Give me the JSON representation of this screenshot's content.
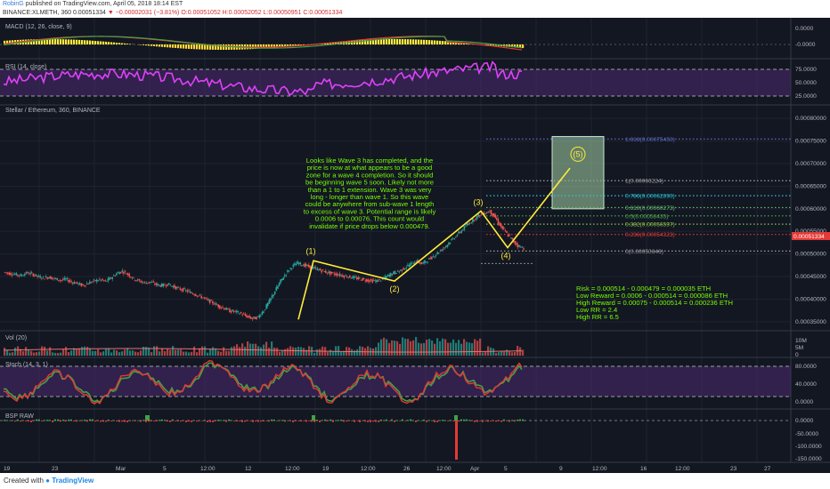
{
  "header": {
    "author": "RobinG",
    "published": "published on TradingView.com, April 05, 2018 18:14 EST",
    "symbol_line": "BINANCE:XLMETH, 360 0.00051334",
    "change": "▼ −0.00002031 (−3.81%)",
    "ohlc": "O:0.00051052 H:0.00052052 L:0.00050951 C:0.00051334"
  },
  "footer": {
    "created_with": "Created with",
    "brand": "TradingView"
  },
  "panes": {
    "macd": {
      "label": "MACD (12, 26, close, 9)",
      "ticks": [
        "0.0000",
        "-0.0000"
      ]
    },
    "rsi": {
      "label": "RSI (14, close)",
      "ticks": [
        "75.0000",
        "50.0000",
        "25.0000"
      ]
    },
    "price": {
      "label": "Stellar / Ethereum, 360, BINANCE",
      "ticks": [
        "0.00080000",
        "0.00075000",
        "0.00070000",
        "0.00065000",
        "0.00060000",
        "0.00055000",
        "0.00050000",
        "0.00045000",
        "0.00040000",
        "0.00035000"
      ]
    },
    "vol": {
      "label": "Vol (20)",
      "ticks": [
        "10M",
        "5M",
        "0"
      ]
    },
    "stoch": {
      "label": "Stoch (14, 3, 1)",
      "ticks": [
        "80.0000",
        "40.0000",
        "0.0000"
      ]
    },
    "bsp": {
      "label": "BSP RAW",
      "ticks": [
        "0.0000",
        "-50.0000",
        "-100.0000",
        "-150.0000"
      ]
    }
  },
  "x_ticks": [
    "19",
    "23",
    "Mar",
    "5",
    "12:00",
    "12",
    "12:00",
    "19",
    "12:00",
    "26",
    "12:00",
    "Apr",
    "5",
    "9",
    "12:00",
    "16",
    "12:00",
    "23",
    "27"
  ],
  "annotation": {
    "text_lines": [
      "Looks like Wave 3 has completed, and the",
      "price is now at what appears to be a good",
      "zone for a wave 4 completion. So it should",
      "be beginning wave 5 soon. Likely not more",
      "than a 1 to 1 extension. Wave 3 was very",
      "long - longer than wave 1. So this wave",
      "could be anywhere from sub-wave 1 length",
      "to excess of wave 3. Potential range is likely",
      "0.0006 to 0.00076. This count would",
      "invalidate if price drops below 0.000479."
    ],
    "rr_lines": [
      "Risk = 0.000514 - 0.000479 = 0.000035 ETH",
      "Low Reward = 0.0006 - 0.000514 = 0.000086 ETH",
      "High Reward = 0.00075 - 0.000514 = 0.000236 ETH",
      "Low RR = 2.4",
      "High RR = 6.5"
    ]
  },
  "chart_data": {
    "type": "line",
    "title": "Stellar / Ethereum, 360, BINANCE",
    "symbol": "BINANCE:XLMETH",
    "ylim": [
      0.00033,
      0.00083
    ],
    "wave_labels": [
      "(1)",
      "(2)",
      "(3)",
      "(4)",
      "(5)"
    ],
    "wave_points": [
      0.000355,
      0.000485,
      0.00044,
      0.000595,
      0.000514,
      0.00069
    ],
    "fib_levels": [
      {
        "label": "1.618(0.00075450)",
        "ratio": 1.618,
        "value": 0.0007545,
        "color": "#5c6bc0"
      },
      {
        "label": "1(0.00066224)",
        "ratio": 1,
        "value": 0.00066224,
        "color": "#9e9e9e"
      },
      {
        "label": "0.786(0.00062890)",
        "ratio": 0.786,
        "value": 0.0006289,
        "color": "#26c6da"
      },
      {
        "label": "0.618(0.00060273)",
        "ratio": 0.618,
        "value": 0.00060273,
        "color": "#66bb6a"
      },
      {
        "label": "0.5(0.00058435)",
        "ratio": 0.5,
        "value": 0.00058435,
        "color": "#4caf50"
      },
      {
        "label": "0.382(0.00056597)",
        "ratio": 0.382,
        "value": 0.00056597,
        "color": "#8bc34a"
      },
      {
        "label": "0.236(0.00054323)",
        "ratio": 0.236,
        "value": 0.00054323,
        "color": "#e53935"
      },
      {
        "label": "0(0.00050646)",
        "ratio": 0,
        "value": 0.00050646,
        "color": "#9e9e9e"
      }
    ],
    "target_zone": [
      0.0006,
      0.00076
    ],
    "invalidation": 0.000479,
    "last_close": 0.00051334,
    "price_path": [
      0.00046,
      0.000457,
      0.000455,
      0.000452,
      0.000458,
      0.000456,
      0.00045,
      0.000447,
      0.000449,
      0.000445,
      0.000442,
      0.000444,
      0.000438,
      0.000435,
      0.00043,
      0.000436,
      0.00044,
      0.000443,
      0.000439,
      0.000447,
      0.000457,
      0.000462,
      0.000455,
      0.000445,
      0.00044,
      0.000436,
      0.000438,
      0.000432,
      0.00043,
      0.000433,
      0.000428,
      0.000423,
      0.00042,
      0.000415,
      0.00041,
      0.000405,
      0.000398,
      0.000392,
      0.000385,
      0.00038,
      0.000374,
      0.000372,
      0.000368,
      0.000362,
      0.000357,
      0.00036,
      0.000375,
      0.000395,
      0.000418,
      0.00044,
      0.000458,
      0.000472,
      0.00048,
      0.000476,
      0.000472,
      0.000468,
      0.000464,
      0.00046,
      0.000457,
      0.000455,
      0.000452,
      0.00045,
      0.000447,
      0.000445,
      0.000443,
      0.000441,
      0.00044,
      0.000444,
      0.000452,
      0.000458,
      0.000462,
      0.00047,
      0.000478,
      0.000485,
      0.000478,
      0.000486,
      0.000495,
      0.000505,
      0.000515,
      0.000528,
      0.00054,
      0.000552,
      0.000565,
      0.000575,
      0.000585,
      0.00059,
      0.000595,
      0.00058,
      0.00056,
      0.000545,
      0.00053,
      0.000518,
      0.000513
    ]
  }
}
